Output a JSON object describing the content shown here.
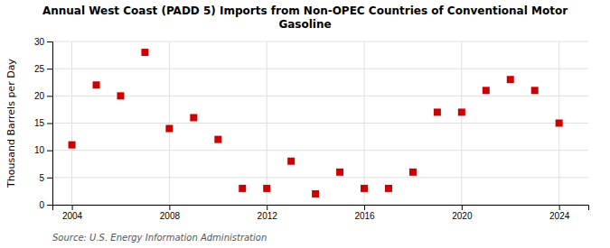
{
  "chart_data": {
    "type": "scatter",
    "title": "Annual West Coast (PADD 5) Imports from Non-OPEC Countries of Conventional Motor\nGasoline",
    "ylabel": "Thousand Barrels per Day",
    "source": "Source: U.S. Energy Information Administration",
    "x": [
      2004,
      2005,
      2006,
      2007,
      2008,
      2009,
      2010,
      2011,
      2012,
      2013,
      2014,
      2015,
      2016,
      2017,
      2018,
      2019,
      2020,
      2021,
      2022,
      2023,
      2024
    ],
    "values": [
      11,
      22,
      20,
      28,
      14,
      16,
      12,
      3,
      3,
      8,
      2,
      6,
      3,
      3,
      6,
      17,
      17,
      21,
      23,
      21,
      15
    ],
    "color": "#cc0000",
    "marker": "square",
    "xlim": [
      2003.2,
      2025.2
    ],
    "ylim": [
      0,
      30
    ],
    "xticks": [
      2004,
      2008,
      2012,
      2016,
      2020,
      2024
    ],
    "yticks": [
      0,
      5,
      10,
      15,
      20,
      25,
      30
    ],
    "grid": true
  }
}
